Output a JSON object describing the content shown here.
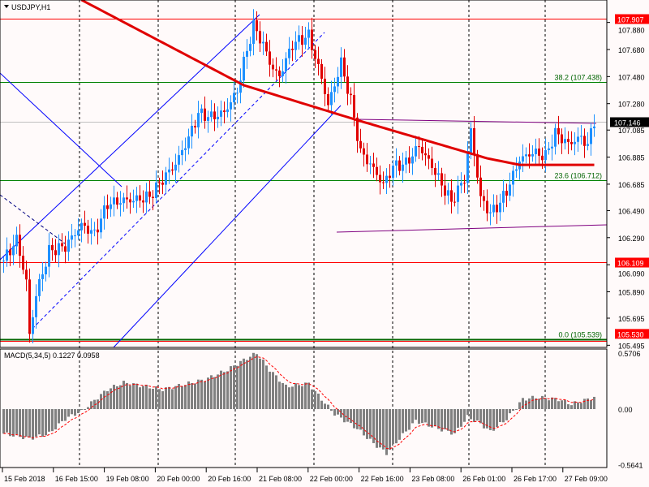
{
  "title": "USDJPY,H1",
  "chart_data": {
    "type": "candlestick",
    "symbol": "USDJPY",
    "timeframe": "H1",
    "price_ticks": [
      "107.880",
      "107.680",
      "107.480",
      "107.280",
      "107.085",
      "106.885",
      "106.685",
      "106.490",
      "106.290",
      "106.090",
      "105.890",
      "105.695",
      "105.495"
    ],
    "price_range": [
      105.47,
      108.05
    ],
    "time_labels": [
      "15 Feb 2018",
      "16 Feb 15:00",
      "19 Feb 08:00",
      "20 Feb 00:00",
      "20 Feb 16:00",
      "21 Feb 08:00",
      "22 Feb 00:00",
      "22 Feb 16:00",
      "23 Feb 08:00",
      "26 Feb 01:00",
      "26 Feb 17:00",
      "27 Feb 09:00"
    ],
    "bars_total": 183,
    "close_keypoints": [
      [
        0,
        106.12
      ],
      [
        4,
        106.3
      ],
      [
        7,
        106.0
      ],
      [
        8,
        105.6
      ],
      [
        10,
        105.9
      ],
      [
        14,
        106.2
      ],
      [
        19,
        106.2
      ],
      [
        24,
        106.35
      ],
      [
        28,
        106.3
      ],
      [
        32,
        106.55
      ],
      [
        37,
        106.6
      ],
      [
        40,
        106.6
      ],
      [
        45,
        106.6
      ],
      [
        49,
        106.7
      ],
      [
        53,
        106.8
      ],
      [
        57,
        107.0
      ],
      [
        60,
        107.2
      ],
      [
        64,
        107.2
      ],
      [
        68,
        107.25
      ],
      [
        72,
        107.4
      ],
      [
        74,
        107.6
      ],
      [
        77,
        107.85
      ],
      [
        79,
        107.75
      ],
      [
        83,
        107.5
      ],
      [
        85,
        107.45
      ],
      [
        89,
        107.7
      ],
      [
        94,
        107.8
      ],
      [
        98,
        107.5
      ],
      [
        100,
        107.3
      ],
      [
        104,
        107.6
      ],
      [
        107,
        107.3
      ],
      [
        110,
        106.9
      ],
      [
        113,
        106.8
      ],
      [
        117,
        106.65
      ],
      [
        120,
        106.8
      ],
      [
        124,
        106.85
      ],
      [
        128,
        107.0
      ],
      [
        132,
        106.85
      ],
      [
        135,
        106.7
      ],
      [
        138,
        106.55
      ],
      [
        142,
        106.7
      ],
      [
        144,
        107.05
      ],
      [
        147,
        106.55
      ],
      [
        150,
        106.45
      ],
      [
        153,
        106.55
      ],
      [
        155,
        106.65
      ],
      [
        159,
        106.9
      ],
      [
        163,
        106.95
      ],
      [
        167,
        106.9
      ],
      [
        170,
        107.05
      ],
      [
        174,
        106.95
      ],
      [
        178,
        107.0
      ],
      [
        180,
        106.95
      ],
      [
        182,
        107.146
      ]
    ],
    "ma_keypoints": [
      [
        24,
        108.046
      ],
      [
        74,
        107.416
      ],
      [
        109,
        107.158
      ],
      [
        149,
        106.876
      ],
      [
        159,
        106.828
      ],
      [
        182,
        106.828
      ]
    ],
    "levels": [
      {
        "price": 107.907,
        "label": "107.907",
        "color": "#ff0000",
        "kind": "red"
      },
      {
        "price": 107.438,
        "label": "38.2 (107.438)",
        "color": "#008000",
        "kind": "fib"
      },
      {
        "price": 106.712,
        "label": "23.6 (106.712)",
        "color": "#008000",
        "kind": "fib"
      },
      {
        "price": 106.109,
        "label": "106.109",
        "color": "#ff0000",
        "kind": "red"
      },
      {
        "price": 105.539,
        "label": "0.0 (105.539)",
        "color": "#006400",
        "kind": "fib"
      },
      {
        "price": 105.53,
        "label": "105.530",
        "color": "#ff0000",
        "kind": "red"
      }
    ],
    "current_price": "107.146",
    "macd": {
      "label": "MACD(5,34,5) 0.1227 0.0958",
      "ticks": [
        "0.5706",
        "0.00",
        "-0.5641"
      ],
      "range": [
        -0.5641,
        0.5706
      ],
      "hist_keypoints": [
        [
          0,
          -0.25
        ],
        [
          8,
          -0.3
        ],
        [
          14,
          -0.25
        ],
        [
          19,
          -0.1
        ],
        [
          24,
          -0.02
        ],
        [
          32,
          0.2
        ],
        [
          37,
          0.27
        ],
        [
          49,
          0.2
        ],
        [
          62,
          0.3
        ],
        [
          69,
          0.4
        ],
        [
          74,
          0.5
        ],
        [
          78,
          0.57
        ],
        [
          82,
          0.4
        ],
        [
          87,
          0.23
        ],
        [
          94,
          0.26
        ],
        [
          98,
          0.1
        ],
        [
          102,
          -0.05
        ],
        [
          109,
          -0.2
        ],
        [
          114,
          -0.35
        ],
        [
          118,
          -0.45
        ],
        [
          122,
          -0.3
        ],
        [
          127,
          -0.12
        ],
        [
          134,
          -0.2
        ],
        [
          139,
          -0.25
        ],
        [
          143,
          -0.08
        ],
        [
          147,
          -0.15
        ],
        [
          150,
          -0.23
        ],
        [
          155,
          -0.1
        ],
        [
          160,
          0.1
        ],
        [
          164,
          0.12
        ],
        [
          171,
          0.1
        ],
        [
          175,
          0.05
        ],
        [
          182,
          0.12
        ]
      ]
    }
  }
}
